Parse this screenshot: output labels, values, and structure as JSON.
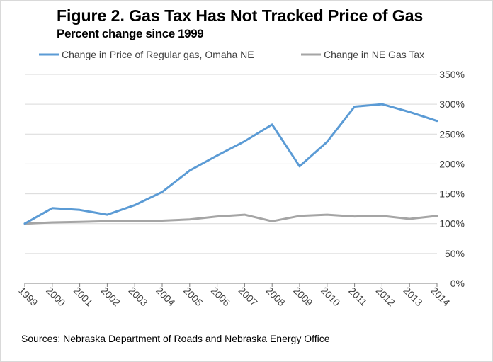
{
  "title": "Figure 2. Gas Tax Has Not Tracked Price of Gas",
  "subtitle": "Percent change since 1999",
  "source": "Sources: Nebraska Department of Roads and Nebraska Energy Office",
  "colors": {
    "series_price": "#5b9bd5",
    "series_tax": "#a5a5a5",
    "gridline": "#d9d9d9",
    "axis": "#808080",
    "text": "#404040"
  },
  "chart_data": {
    "type": "line",
    "x": [
      "1999",
      "2000",
      "2001",
      "2002",
      "2003",
      "2004",
      "2005",
      "2006",
      "2007",
      "2008",
      "2009",
      "2010",
      "2011",
      "2012",
      "2013",
      "2014"
    ],
    "series": [
      {
        "name": "Change in Price of Regular gas, Omaha NE",
        "color": "#5b9bd5",
        "values": [
          100,
          126,
          123,
          115,
          131,
          153,
          189,
          214,
          238,
          266,
          196,
          237,
          296,
          300,
          287,
          272
        ]
      },
      {
        "name": "Change in NE Gas Tax",
        "color": "#a5a5a5",
        "values": [
          100,
          102,
          103,
          104,
          104,
          105,
          107,
          112,
          115,
          104,
          113,
          115,
          112,
          113,
          108,
          113
        ]
      }
    ],
    "yticks": [
      "0%",
      "50%",
      "100%",
      "150%",
      "200%",
      "250%",
      "300%",
      "350%"
    ],
    "ylim": [
      0,
      350
    ],
    "grid": true,
    "legend": "top"
  }
}
